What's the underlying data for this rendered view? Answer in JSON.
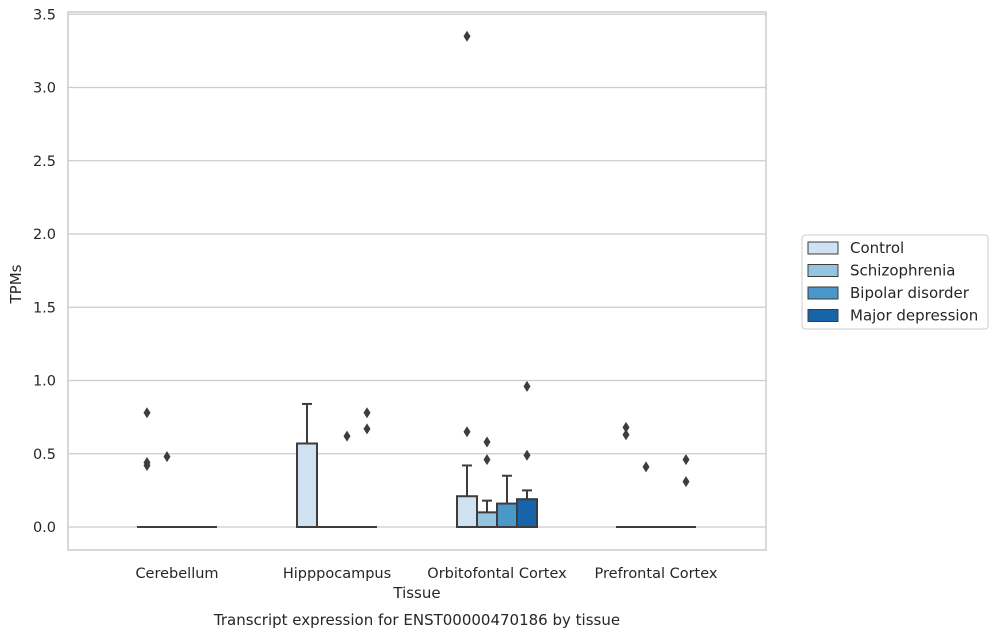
{
  "chart_data": {
    "type": "box",
    "title": "Transcript expression for ENST00000470186 by tissue",
    "xlabel": "Tissue",
    "ylabel": "TPMs",
    "ylim": [
      -0.16,
      3.53
    ],
    "yticks": [
      0.0,
      0.5,
      1.0,
      1.5,
      2.0,
      2.5,
      3.0,
      3.5
    ],
    "ytick_labels": [
      "0.0",
      "0.5",
      "1.0",
      "1.5",
      "2.0",
      "2.5",
      "3.0",
      "3.5"
    ],
    "grid": "horizontal",
    "legend_position": "right",
    "categories": [
      "Cerebellum",
      "Hipppocampus",
      "Orbitofontal Cortex",
      "Prefrontal Cortex"
    ],
    "series": [
      {
        "name": "Control",
        "color": "#d0e1f2",
        "boxes": [
          {
            "q1": 0,
            "median": 0,
            "q3": 0,
            "whisker_low": 0,
            "whisker_high": 0,
            "outliers": [
              0.78,
              0.44,
              0.42
            ]
          },
          {
            "q1": 0,
            "median": 0,
            "q3": 0.57,
            "whisker_low": 0,
            "whisker_high": 0.84,
            "outliers": []
          },
          {
            "q1": 0,
            "median": 0,
            "q3": 0.21,
            "whisker_low": 0,
            "whisker_high": 0.42,
            "outliers": [
              0.65,
              3.35
            ]
          },
          {
            "q1": 0,
            "median": 0,
            "q3": 0,
            "whisker_low": 0,
            "whisker_high": 0,
            "outliers": [
              0.68,
              0.63
            ]
          }
        ]
      },
      {
        "name": "Schizophrenia",
        "color": "#94c4df",
        "boxes": [
          {
            "q1": 0,
            "median": 0,
            "q3": 0,
            "whisker_low": 0,
            "whisker_high": 0,
            "outliers": [
              0.48
            ]
          },
          {
            "q1": 0,
            "median": 0,
            "q3": 0,
            "whisker_low": 0,
            "whisker_high": 0,
            "outliers": []
          },
          {
            "q1": 0,
            "median": 0,
            "q3": 0.1,
            "whisker_low": 0,
            "whisker_high": 0.18,
            "outliers": [
              0.58,
              0.46
            ]
          },
          {
            "q1": 0,
            "median": 0,
            "q3": 0,
            "whisker_low": 0,
            "whisker_high": 0,
            "outliers": [
              0.41
            ]
          }
        ]
      },
      {
        "name": "Bipolar disorder",
        "color": "#4a98c9",
        "boxes": [
          {
            "q1": 0,
            "median": 0,
            "q3": 0,
            "whisker_low": 0,
            "whisker_high": 0,
            "outliers": []
          },
          {
            "q1": 0,
            "median": 0,
            "q3": 0,
            "whisker_low": 0,
            "whisker_high": 0,
            "outliers": [
              0.62
            ]
          },
          {
            "q1": 0,
            "median": 0,
            "q3": 0.16,
            "whisker_low": 0,
            "whisker_high": 0.35,
            "outliers": []
          },
          {
            "q1": 0,
            "median": 0,
            "q3": 0,
            "whisker_low": 0,
            "whisker_high": 0,
            "outliers": []
          }
        ]
      },
      {
        "name": "Major depression",
        "color": "#1764ab",
        "boxes": [
          {
            "q1": 0,
            "median": 0,
            "q3": 0,
            "whisker_low": 0,
            "whisker_high": 0,
            "outliers": []
          },
          {
            "q1": 0,
            "median": 0,
            "q3": 0,
            "whisker_low": 0,
            "whisker_high": 0,
            "outliers": [
              0.78,
              0.67
            ]
          },
          {
            "q1": 0,
            "median": 0,
            "q3": 0.19,
            "whisker_low": 0,
            "whisker_high": 0.25,
            "outliers": [
              0.96,
              0.49
            ]
          },
          {
            "q1": 0,
            "median": 0,
            "q3": 0,
            "whisker_low": 0,
            "whisker_high": 0,
            "outliers": [
              0.46,
              0.31
            ]
          }
        ]
      }
    ]
  },
  "colors": {
    "grid": "#cccccc",
    "spine": "#cccccc",
    "box_edge": "#3d3d3d",
    "outlier": "#3d3d3d",
    "text": "#262626"
  }
}
